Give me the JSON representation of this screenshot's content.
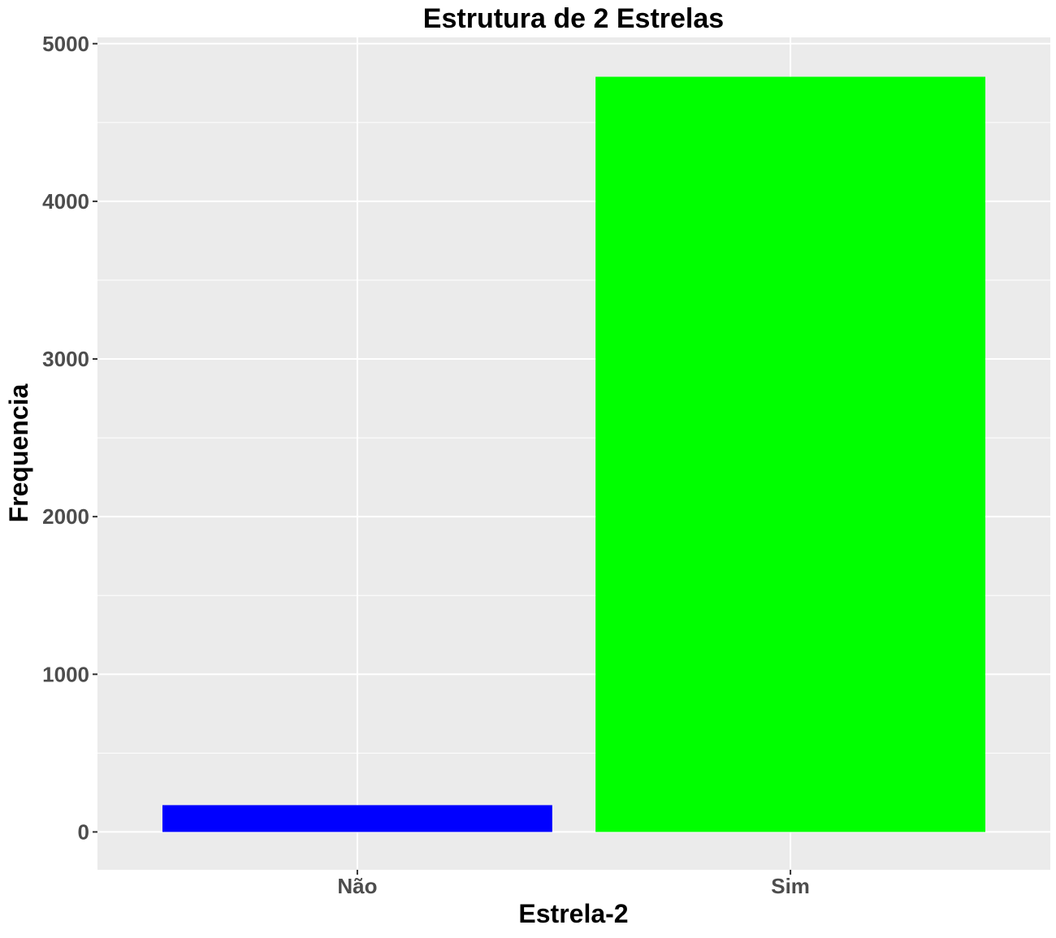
{
  "chart_data": {
    "type": "bar",
    "title": "Estrutura de 2 Estrelas",
    "xlabel": "Estrela-2",
    "ylabel": "Frequencia",
    "categories": [
      "Não",
      "Sim"
    ],
    "values": [
      170,
      4790
    ],
    "bar_colors": [
      "#0000ff",
      "#00ff00"
    ],
    "ylim": [
      -240,
      5040
    ],
    "yticks": [
      0,
      1000,
      2000,
      3000,
      4000,
      5000
    ],
    "ytick_labels": [
      "0",
      "1000",
      "2000",
      "3000",
      "4000",
      "5000"
    ],
    "grid": true,
    "legend": "none",
    "panel_background": "#ebebeb",
    "grid_color": "#ffffff"
  }
}
